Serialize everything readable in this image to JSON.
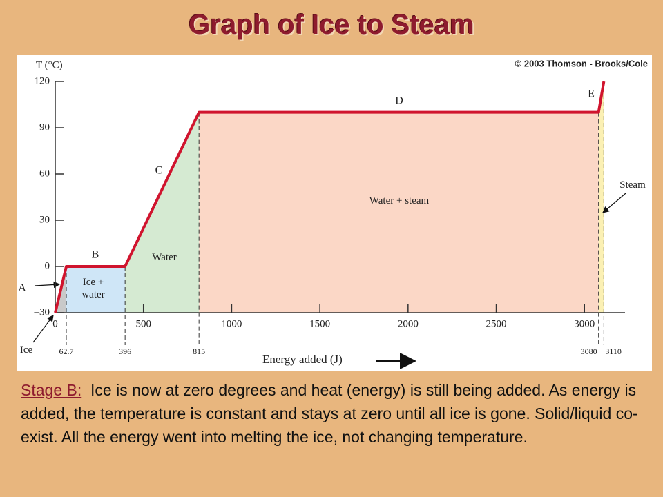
{
  "title": "Graph of Ice to Steam",
  "credit": "© 2003 Thomson - Brooks/Cole",
  "chart_data": {
    "type": "line",
    "x_label": "Energy added (J)",
    "y_label": "T (°C)",
    "x": [
      0,
      62.7,
      396,
      815,
      3080,
      3110
    ],
    "values": [
      -30,
      0,
      0,
      100,
      100,
      120
    ],
    "color": "#d0142e",
    "xlim": [
      0,
      3230
    ],
    "xticks": [
      0,
      500,
      1000,
      1500,
      2000,
      2500,
      3000
    ],
    "ylim": [
      -30,
      120
    ],
    "yticks": [
      {
        "value": -30,
        "label": "–30"
      },
      0,
      30,
      60,
      90,
      120
    ],
    "phase_letters": [
      "A",
      "B",
      "C",
      "D",
      "E"
    ],
    "phase_labels": [
      "Ice",
      "Ice + water",
      "Water",
      "Water + steam",
      "Steam"
    ]
  },
  "caption": {
    "label": "Stage B:",
    "text": "Ice is now at zero degrees and heat (energy) is still being added.  As energy is added, the temperature is constant and stays at zero until all ice is gone.  Solid/liquid co-exist. All the energy went into melting the ice, not changing temperature."
  }
}
